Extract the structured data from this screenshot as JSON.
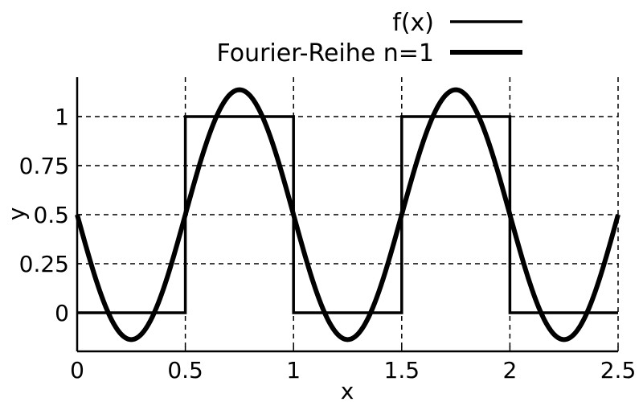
{
  "chart_data": {
    "type": "line",
    "title": "",
    "xlabel": "x",
    "ylabel": "y",
    "xlim": [
      0,
      2.5
    ],
    "ylim": [
      -0.2,
      1.2
    ],
    "grid": true,
    "legend_position": "top-right",
    "x_ticks": [
      {
        "value": 0,
        "label": "0"
      },
      {
        "value": 0.5,
        "label": "0.5"
      },
      {
        "value": 1,
        "label": "1"
      },
      {
        "value": 1.5,
        "label": "1.5"
      },
      {
        "value": 2,
        "label": "2"
      },
      {
        "value": 2.5,
        "label": "2.5"
      }
    ],
    "y_ticks": [
      {
        "value": 0,
        "label": "0"
      },
      {
        "value": 0.25,
        "label": "0.25"
      },
      {
        "value": 0.5,
        "label": "0.5"
      },
      {
        "value": 0.75,
        "label": "0.75"
      },
      {
        "value": 1,
        "label": "1"
      }
    ],
    "series": [
      {
        "name": "f(x)",
        "color": "#000000",
        "style": "thin-solid",
        "x": [
          0,
          0.5,
          0.5,
          1,
          1,
          1.5,
          1.5,
          2,
          2,
          2.5
        ],
        "y": [
          0,
          0,
          1,
          1,
          0,
          0,
          1,
          1,
          0,
          0
        ]
      },
      {
        "name": "Fourier-Reihe n=1",
        "color": "#000000",
        "style": "thick-solid",
        "function": "0.5 - (2/pi) * sin(2*pi*x)",
        "x_range": [
          0,
          2.5
        ]
      }
    ]
  }
}
